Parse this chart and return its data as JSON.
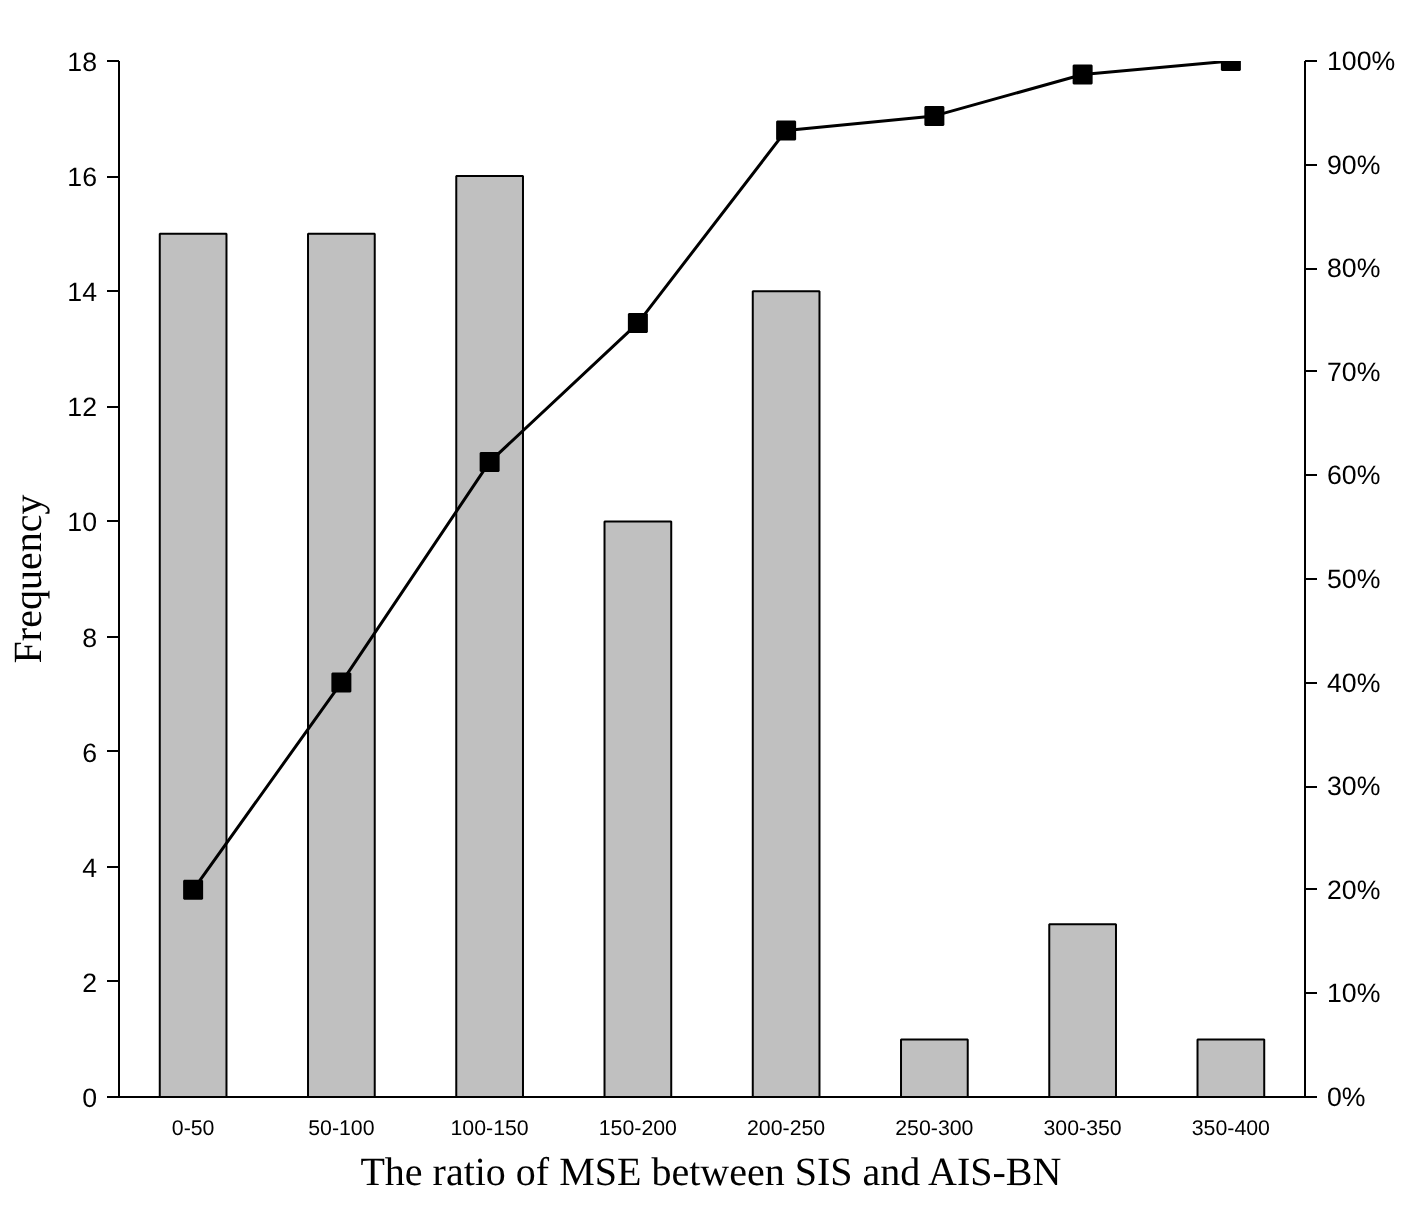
{
  "chart_data": {
    "type": "bar",
    "xlabel": "The ratio of MSE between SIS and AIS-BN",
    "ylabel": "Frequency",
    "categories": [
      "0-50",
      "50-100",
      "100-150",
      "150-200",
      "200-250",
      "250-300",
      "300-350",
      "350-400"
    ],
    "series": [
      {
        "color": "#c0c0c0",
        "values": [
          15,
          15,
          16,
          10,
          14,
          1,
          3,
          1
        ]
      },
      {
        "type": "line",
        "axis": "y2",
        "color": "#000000",
        "marker": "square",
        "values": [
          20,
          40,
          61.3,
          74.7,
          93.3,
          94.7,
          98.7,
          100
        ]
      }
    ],
    "ylim": [
      0,
      18
    ],
    "yticks": [
      0,
      2,
      4,
      6,
      8,
      10,
      12,
      14,
      16,
      18
    ],
    "y2lim": [
      0,
      100
    ],
    "y2ticks": [
      {
        "value": 0,
        "label": "0%"
      },
      {
        "value": 10,
        "label": "10%"
      },
      {
        "value": 20,
        "label": "20%"
      },
      {
        "value": 30,
        "label": "30%"
      },
      {
        "value": 40,
        "label": "40%"
      },
      {
        "value": 50,
        "label": "50%"
      },
      {
        "value": 60,
        "label": "60%"
      },
      {
        "value": 70,
        "label": "70%"
      },
      {
        "value": 80,
        "label": "80%"
      },
      {
        "value": 90,
        "label": "90%"
      },
      {
        "value": 100,
        "label": "100%"
      }
    ],
    "grid": false
  }
}
